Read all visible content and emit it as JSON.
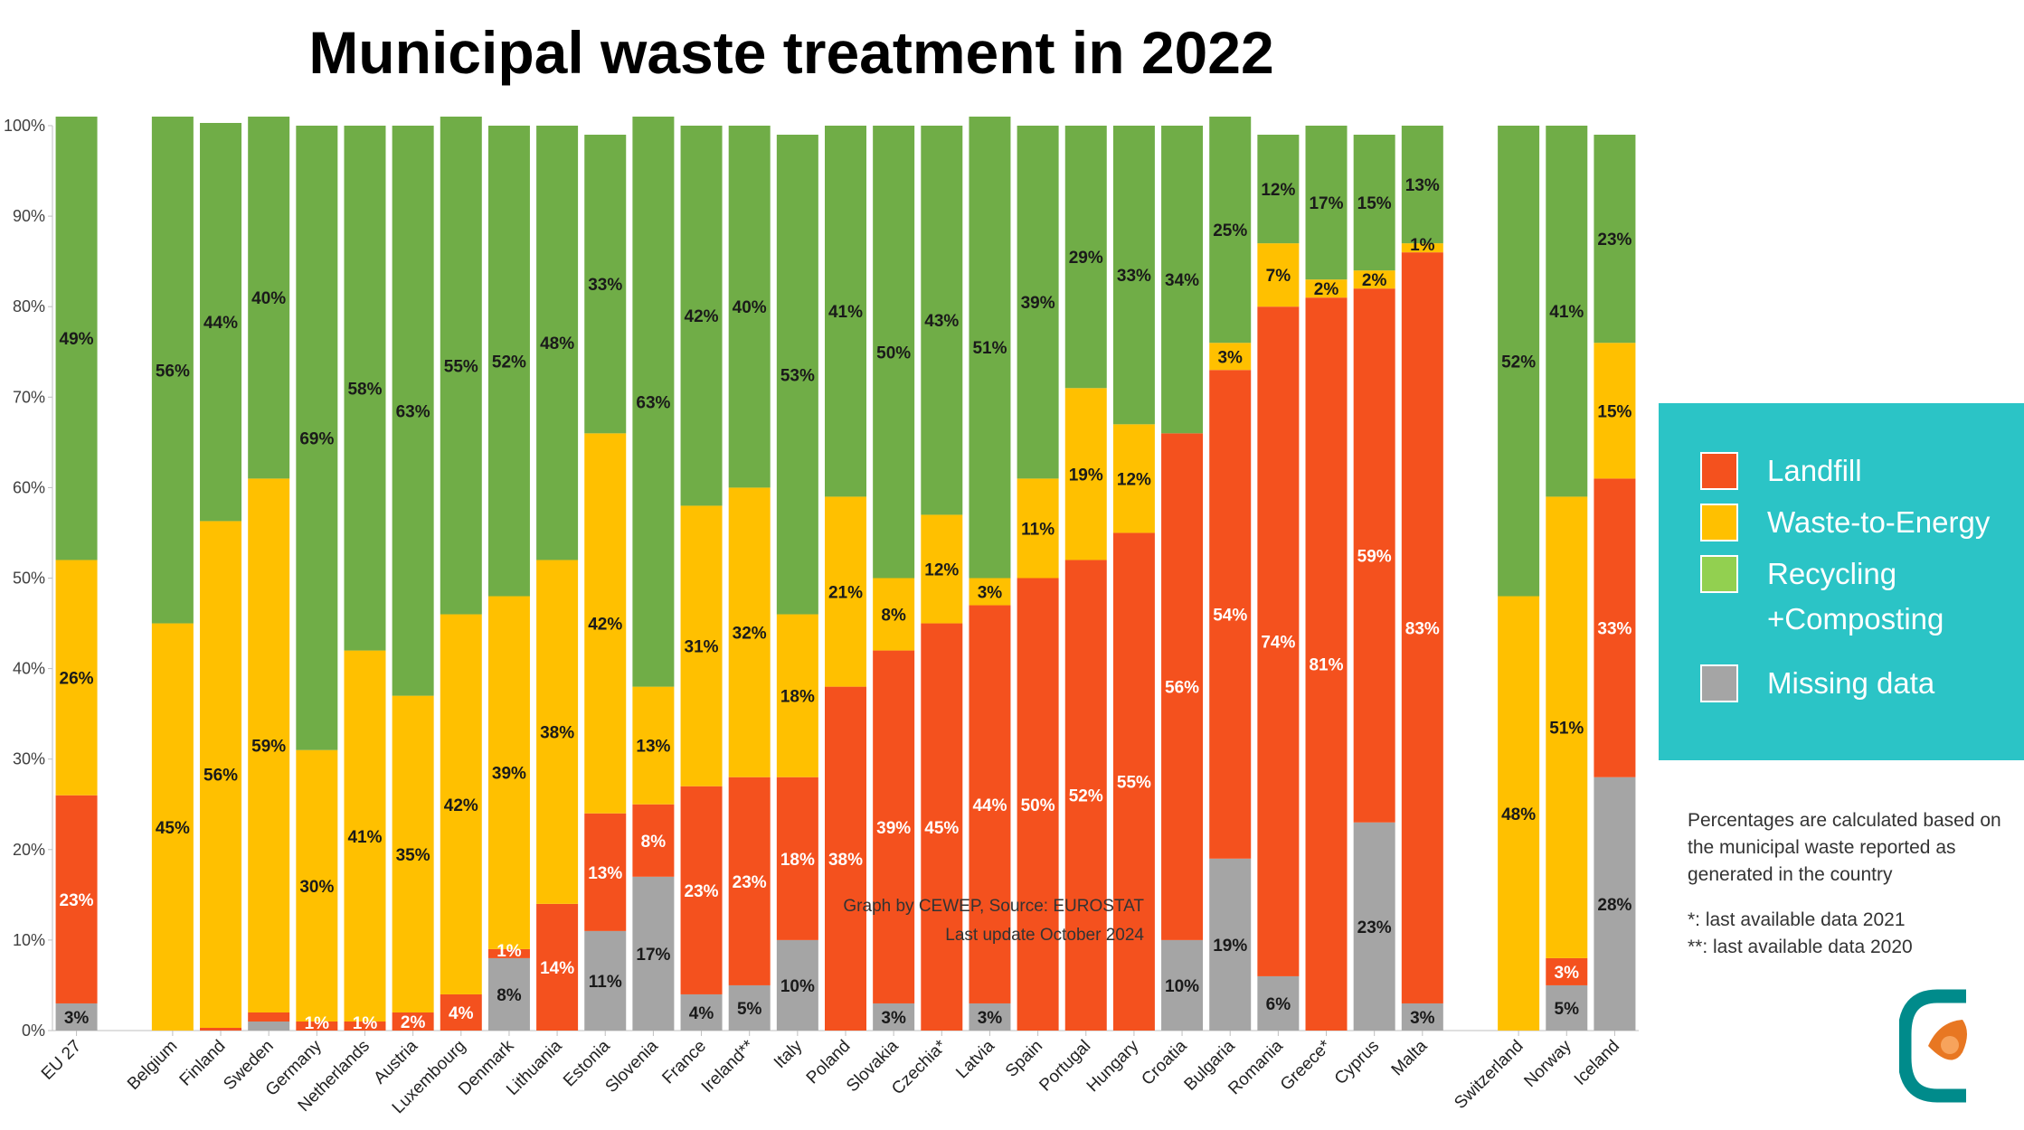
{
  "chart_data": {
    "type": "bar",
    "stacked": true,
    "title": "Municipal waste treatment in 2022",
    "ylim": [
      0,
      100
    ],
    "y_ticks": [
      "0%",
      "10%",
      "20%",
      "30%",
      "40%",
      "50%",
      "60%",
      "70%",
      "80%",
      "90%",
      "100%"
    ],
    "grid": false,
    "legend_position": "right",
    "categories": [
      "EU 27",
      "",
      "Belgium",
      "Finland",
      "Sweden",
      "Germany",
      "Netherlands",
      "Austria",
      "Luxembourg",
      "Denmark",
      "Lithuania",
      "Estonia",
      "Slovenia",
      "France",
      "Ireland**",
      "Italy",
      "Poland",
      "Slovakia",
      "Czechia*",
      "Latvia",
      "Spain",
      "Portugal",
      "Hungary",
      "Croatia",
      "Bulgaria",
      "Romania",
      "Greece*",
      "Cyprus",
      "Malta",
      "",
      "Switzerland",
      "Norway",
      "Iceland"
    ],
    "series": [
      {
        "name": "Missing data",
        "color": "#a5a5a5",
        "values": [
          3,
          null,
          0,
          0,
          1,
          0,
          0,
          0,
          0,
          8,
          0,
          11,
          17,
          4,
          5,
          10,
          0,
          3,
          0,
          3,
          0,
          0,
          0,
          10,
          19,
          6,
          0,
          23,
          3,
          null,
          0,
          5,
          28
        ],
        "labels": [
          "3%",
          "",
          "",
          "",
          "",
          "",
          "",
          "",
          "",
          "8%",
          "",
          "11%",
          "17%",
          "4%",
          "5%",
          "10%",
          "",
          "3%",
          "",
          "3%",
          "",
          "",
          "",
          "10%",
          "19%",
          "6%",
          "",
          "23%",
          "3%",
          "",
          "",
          "5%",
          "28%"
        ]
      },
      {
        "name": "Landfill",
        "color": "#f4511e",
        "values": [
          23,
          null,
          0,
          0.3,
          1,
          1,
          1,
          2,
          4,
          1,
          14,
          13,
          8,
          23,
          23,
          18,
          38,
          39,
          45,
          44,
          50,
          52,
          55,
          56,
          54,
          74,
          81,
          59,
          83,
          null,
          0,
          3,
          33
        ],
        "labels": [
          "23%",
          "",
          "",
          "",
          "",
          "1%",
          "1%",
          "2%",
          "4%",
          "1%",
          "14%",
          "13%",
          "8%",
          "23%",
          "23%",
          "18%",
          "38%",
          "39%",
          "45%",
          "44%",
          "50%",
          "52%",
          "55%",
          "56%",
          "54%",
          "74%",
          "81%",
          "59%",
          "83%",
          "",
          "",
          "3%",
          "33%"
        ]
      },
      {
        "name": "Waste-to-Energy",
        "color": "#ffc000",
        "values": [
          26,
          null,
          45,
          56,
          59,
          30,
          41,
          35,
          42,
          39,
          38,
          42,
          13,
          31,
          32,
          18,
          21,
          8,
          12,
          3,
          11,
          19,
          12,
          0,
          3,
          7,
          2,
          2,
          1,
          null,
          48,
          51,
          15
        ],
        "labels": [
          "26%",
          "",
          "45%",
          "56%",
          "59%",
          "30%",
          "41%",
          "35%",
          "42%",
          "39%",
          "38%",
          "42%",
          "13%",
          "31%",
          "32%",
          "18%",
          "21%",
          "8%",
          "12%",
          "3%",
          "11%",
          "19%",
          "12%",
          "",
          "3%",
          "7%",
          "2%",
          "2%",
          "1%",
          "",
          "48%",
          "51%",
          "15%"
        ]
      },
      {
        "name": "Recycling +Composting",
        "color": "#70ad47",
        "values": [
          49,
          null,
          56,
          44,
          40,
          69,
          58,
          63,
          55,
          52,
          48,
          33,
          63,
          42,
          40,
          53,
          41,
          50,
          43,
          51,
          39,
          29,
          33,
          34,
          25,
          12,
          17,
          15,
          13,
          null,
          52,
          41,
          23
        ],
        "labels": [
          "49%",
          "",
          "56%",
          "44%",
          "40%",
          "69%",
          "58%",
          "63%",
          "55%",
          "52%",
          "48%",
          "33%",
          "63%",
          "42%",
          "40%",
          "53%",
          "41%",
          "50%",
          "43%",
          "51%",
          "39%",
          "29%",
          "33%",
          "34%",
          "25%",
          "12%",
          "17%",
          "15%",
          "13%",
          "",
          "52%",
          "41%",
          "23%"
        ]
      }
    ],
    "annotations": [
      "Graph by CEWEP, Source: EUROSTAT",
      "Last update October 2024"
    ]
  },
  "legend": [
    {
      "label": "Landfill",
      "color": "#f4511e"
    },
    {
      "label": "Waste-to-Energy",
      "color": "#ffc000"
    },
    {
      "label": "Recycling\n+Composting",
      "color": "#92d050"
    },
    {
      "label": "Missing data",
      "color": "#a5a5a5"
    }
  ],
  "notes": {
    "line1": "Percentages are calculated based on the municipal waste reported as generated in the country",
    "line2": "*: last available data 2021",
    "line3": "**: last available data 2020"
  },
  "logo": {
    "icon": "cewep-logo-icon",
    "primary_color": "#008b8b",
    "accent_color": "#e87722"
  }
}
